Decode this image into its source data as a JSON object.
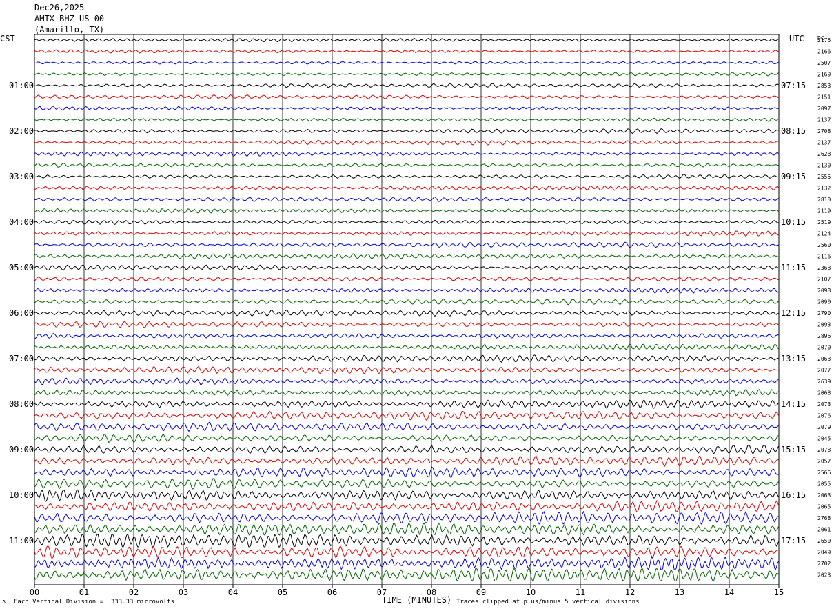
{
  "header": {
    "date": "Dec26,2025",
    "station": "AMTX BHZ US 00",
    "location": "(Amarillo, TX)"
  },
  "axis": {
    "left_title": "CST",
    "right_title": "UTC",
    "dc_label": "DC",
    "x_title": "TIME (MINUTES)"
  },
  "footer": {
    "scale_note": "Each Vertical Division =  333.33 microvolts",
    "clip_note": "Traces clipped at plus/minus 5 vertical divisions"
  },
  "chart_data": {
    "type": "line",
    "title": "AMTX BHZ US 00",
    "xlabel": "TIME (MINUTES)",
    "xlim": [
      0,
      15
    ],
    "x_ticks": [
      "00",
      "01",
      "02",
      "03",
      "04",
      "05",
      "06",
      "07",
      "08",
      "09",
      "10",
      "11",
      "12",
      "13",
      "14",
      "15"
    ],
    "trace_colors": [
      "#000000",
      "#e00000",
      "#0000dd",
      "#006400"
    ],
    "rows_per_hour": 4,
    "num_traces": 48,
    "left_hour_labels": [
      "01:00",
      "02:00",
      "03:00",
      "04:00",
      "05:00",
      "06:00",
      "07:00",
      "08:00",
      "09:00",
      "10:00",
      "11:00"
    ],
    "right_hour_labels": [
      "07:15",
      "08:15",
      "09:15",
      "10:15",
      "11:15",
      "12:15",
      "13:15",
      "14:15",
      "15:15",
      "16:15",
      "17:15"
    ],
    "dc_offsets": [
      "2175",
      "2166",
      "2507",
      "2169",
      "2853",
      "2151",
      "2097",
      "2137",
      "2708",
      "2137",
      "2628",
      "2130",
      "2555",
      "2132",
      "2810",
      "2119",
      "2519",
      "2124",
      "2560",
      "2116",
      "2368",
      "2107",
      "2098",
      "2090",
      "2790",
      "2093",
      "2896",
      "2070",
      "2063",
      "2077",
      "2639",
      "2068",
      "2073",
      "2076",
      "2079",
      "2045",
      "2078",
      "2057",
      "2566",
      "2055",
      "2063",
      "2065",
      "2768",
      "2061",
      "2650",
      "2049",
      "2702",
      "2023"
    ],
    "amplitude_by_hour": [
      0.35,
      0.4,
      0.45,
      0.45,
      0.5,
      0.55,
      0.6,
      0.7,
      0.85,
      1.0,
      1.25,
      1.5
    ]
  }
}
